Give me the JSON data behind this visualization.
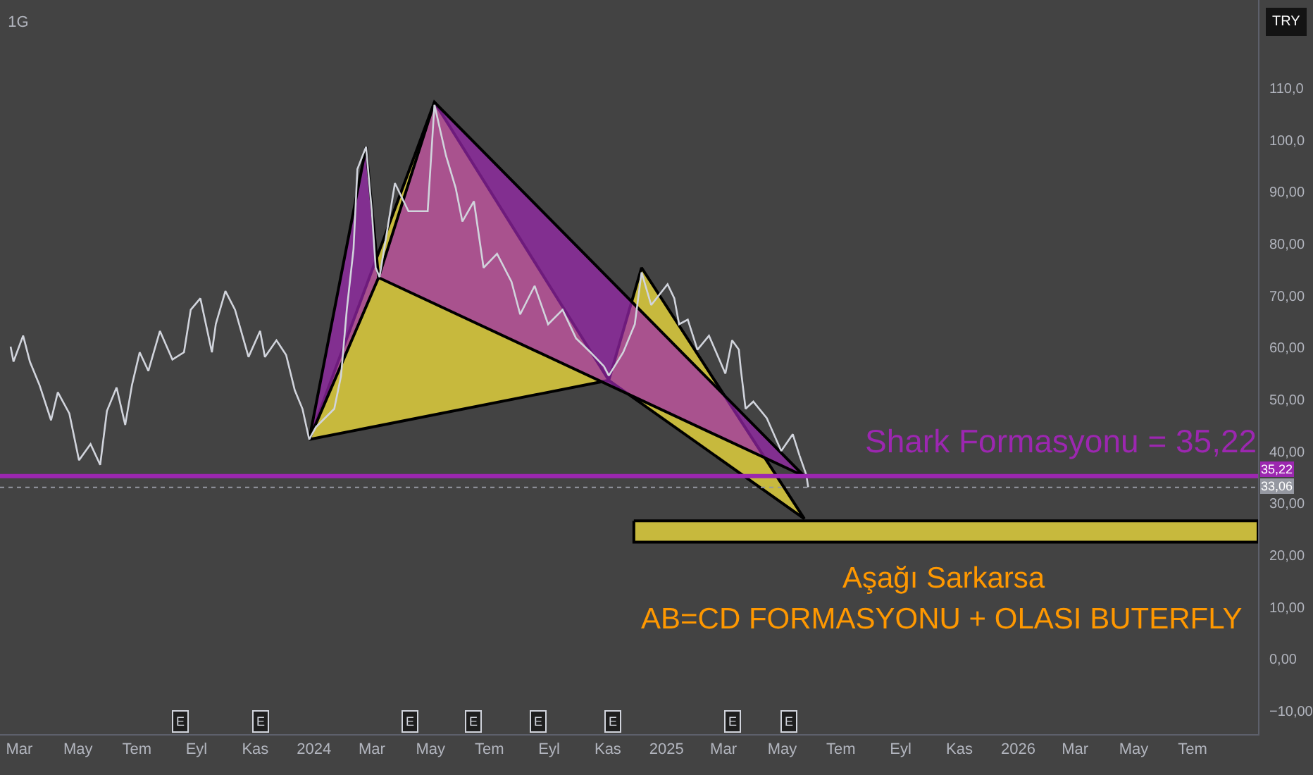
{
  "chart_data": {
    "type": "line",
    "title": "1G",
    "series": [
      {
        "type": "area",
        "color": "#ffeb3b",
        "x": [
          "2023-12-27",
          "2024-05-05",
          "2024-11-02"
        ],
        "values": [
          42.3,
          107.3,
          53.7
        ]
      },
      {
        "type": "area",
        "color": "#ffeb3b",
        "x": [
          "2024-11-02",
          "2024-12-06",
          "2025-05-24"
        ],
        "values": [
          53.7,
          75.4,
          27.0
        ]
      },
      {
        "type": "area",
        "color": "#9c27b0",
        "x": [
          "2023-12-27",
          "2024-02-24",
          "2024-03-08"
        ],
        "values": [
          42.3,
          98.7,
          73.5
        ]
      },
      {
        "type": "area",
        "color": "#9c27b0",
        "x": [
          "2024-03-08",
          "2024-05-05",
          "2025-05-24"
        ],
        "values": [
          73.5,
          107.3,
          35.2
        ]
      },
      {
        "type": "area",
        "color": "#ffeb3b",
        "x": [
          "2024-11-28",
          "2026-09-07",
          "2026-09-07",
          "2024-11-28"
        ],
        "values": [
          26.6,
          26.6,
          22.5,
          22.5
        ]
      },
      {
        "color": "#d1d4dc",
        "x": [
          "2023-02-20",
          "2023-02-23",
          "2023-03-05",
          "2023-03-12",
          "2023-03-22",
          "2023-04-03",
          "2023-04-10",
          "2023-04-22",
          "2023-05-02",
          "2023-05-14",
          "2023-05-24",
          "2023-05-31",
          "2023-06-10",
          "2023-06-19",
          "2023-06-26",
          "2023-07-04",
          "2023-07-13",
          "2023-07-25",
          "2023-08-07",
          "2023-08-19",
          "2023-08-26",
          "2023-09-05",
          "2023-09-17",
          "2023-09-21",
          "2023-10-01",
          "2023-10-11",
          "2023-10-25",
          "2023-11-06",
          "2023-11-11",
          "2023-11-23",
          "2023-12-03",
          "2023-12-12",
          "2023-12-20",
          "2023-12-27",
          "2024-01-03",
          "2024-01-22",
          "2024-01-29",
          "2024-02-04",
          "2024-02-11",
          "2024-02-15",
          "2024-02-24",
          "2024-03-01",
          "2024-03-05",
          "2024-03-09",
          "2024-03-25",
          "2024-04-08",
          "2024-04-28",
          "2024-05-05",
          "2024-05-17",
          "2024-05-27",
          "2024-06-03",
          "2024-06-15",
          "2024-06-25",
          "2024-07-09",
          "2024-07-24",
          "2024-08-02",
          "2024-08-17",
          "2024-08-31",
          "2024-09-15",
          "2024-09-29",
          "2024-10-14",
          "2024-10-28",
          "2024-11-02",
          "2024-11-17",
          "2024-11-29",
          "2024-12-06",
          "2024-12-16",
          "2025-01-02",
          "2025-01-09",
          "2025-01-14",
          "2025-01-23",
          "2025-02-02",
          "2025-02-14",
          "2025-03-03",
          "2025-03-10",
          "2025-03-17",
          "2025-03-19",
          "2025-03-24",
          "2025-04-01",
          "2025-04-15",
          "2025-04-30",
          "2025-05-12",
          "2025-05-19",
          "2025-05-26",
          "2025-05-28"
        ],
        "values": [
          60.2,
          57.3,
          62.3,
          57.3,
          52.8,
          46.0,
          51.4,
          47.3,
          38.3,
          41.4,
          37.4,
          47.8,
          52.3,
          45.1,
          52.8,
          59.1,
          55.5,
          63.2,
          57.7,
          59.1,
          67.3,
          69.5,
          59.1,
          64.5,
          70.9,
          67.3,
          58.2,
          63.2,
          58.2,
          61.4,
          58.6,
          51.8,
          48.2,
          42.3,
          44.7,
          48.2,
          54.5,
          67.3,
          79.0,
          94.4,
          98.7,
          86.3,
          75.4,
          73.6,
          91.7,
          86.3,
          86.3,
          106.8,
          97.0,
          90.8,
          84.3,
          88.2,
          75.4,
          78.1,
          72.7,
          66.4,
          71.9,
          64.5,
          67.3,
          61.8,
          59.1,
          56.4,
          54.6,
          59.1,
          64.5,
          74.5,
          68.2,
          72.2,
          69.5,
          64.5,
          65.4,
          59.6,
          62.3,
          55.0,
          61.4,
          59.6,
          55.9,
          48.2,
          49.6,
          46.4,
          40.1,
          43.3,
          39.2,
          35.5,
          33.1
        ]
      }
    ],
    "xlim": [
      "2023-02-09",
      "2026-09-07"
    ],
    "xticks": [
      {
        "value": "2023-03-01",
        "label": "Mar"
      },
      {
        "value": "2023-05-01",
        "label": "May"
      },
      {
        "value": "2023-07-01",
        "label": "Tem"
      },
      {
        "value": "2023-09-01",
        "label": "Eyl"
      },
      {
        "value": "2023-11-01",
        "label": "Kas"
      },
      {
        "value": "2024-01-01",
        "label": "2024"
      },
      {
        "value": "2024-03-01",
        "label": "Mar"
      },
      {
        "value": "2024-05-01",
        "label": "May"
      },
      {
        "value": "2024-07-01",
        "label": "Tem"
      },
      {
        "value": "2024-09-01",
        "label": "Eyl"
      },
      {
        "value": "2024-11-01",
        "label": "Kas"
      },
      {
        "value": "2025-01-01",
        "label": "2025"
      },
      {
        "value": "2025-03-01",
        "label": "Mar"
      },
      {
        "value": "2025-05-01",
        "label": "May"
      },
      {
        "value": "2025-07-01",
        "label": "Tem"
      },
      {
        "value": "2025-09-01",
        "label": "Eyl"
      },
      {
        "value": "2025-11-01",
        "label": "Kas"
      },
      {
        "value": "2026-01-01",
        "label": "2026"
      },
      {
        "value": "2026-03-01",
        "label": "Mar"
      },
      {
        "value": "2026-05-01",
        "label": "May"
      },
      {
        "value": "2026-07-01",
        "label": "Tem"
      }
    ],
    "ylim": [
      -14.5,
      127
    ],
    "yticks": [
      {
        "value": 110,
        "label": "110,0"
      },
      {
        "value": 100,
        "label": "100,0"
      },
      {
        "value": 90,
        "label": "90,00"
      },
      {
        "value": 80,
        "label": "80,00"
      },
      {
        "value": 70,
        "label": "70,00"
      },
      {
        "value": 60,
        "label": "60,00"
      },
      {
        "value": 50,
        "label": "50,00"
      },
      {
        "value": 40,
        "label": "40,00"
      },
      {
        "value": 30,
        "label": "30,00"
      },
      {
        "value": 20,
        "label": "20,00"
      },
      {
        "value": 10,
        "label": "10,00"
      },
      {
        "value": 0,
        "label": "0,00"
      },
      {
        "value": -10,
        "label": "−10,00"
      }
    ],
    "ref_lines": [
      {
        "axis": "y",
        "value": 35.22,
        "label": "35,22",
        "color": "#9c27b0",
        "line_style": "solid"
      },
      {
        "axis": "y",
        "value": 33.06,
        "label": "33,06",
        "color": "#9598a1",
        "line_style": "dotted"
      }
    ],
    "annotations": [
      "Shark Formasyonu = 35,22",
      "Aşağı Sarkarsa",
      "AB=CD FORMASYONU + OLASI BUTERFLY",
      "TRY",
      {
        "text": "E",
        "x": "2023-08-15",
        "y": -12
      },
      {
        "text": "E",
        "x": "2023-11-06",
        "y": -12
      },
      {
        "text": "E",
        "x": "2024-04-09",
        "y": -12
      },
      {
        "text": "E",
        "x": "2024-06-15",
        "y": -12
      },
      {
        "text": "E",
        "x": "2024-08-20",
        "y": -12
      },
      {
        "text": "E",
        "x": "2024-11-06",
        "y": -12
      },
      {
        "text": "E",
        "x": "2025-03-11",
        "y": -12
      },
      {
        "text": "E",
        "x": "2025-05-08",
        "y": -12
      }
    ]
  }
}
